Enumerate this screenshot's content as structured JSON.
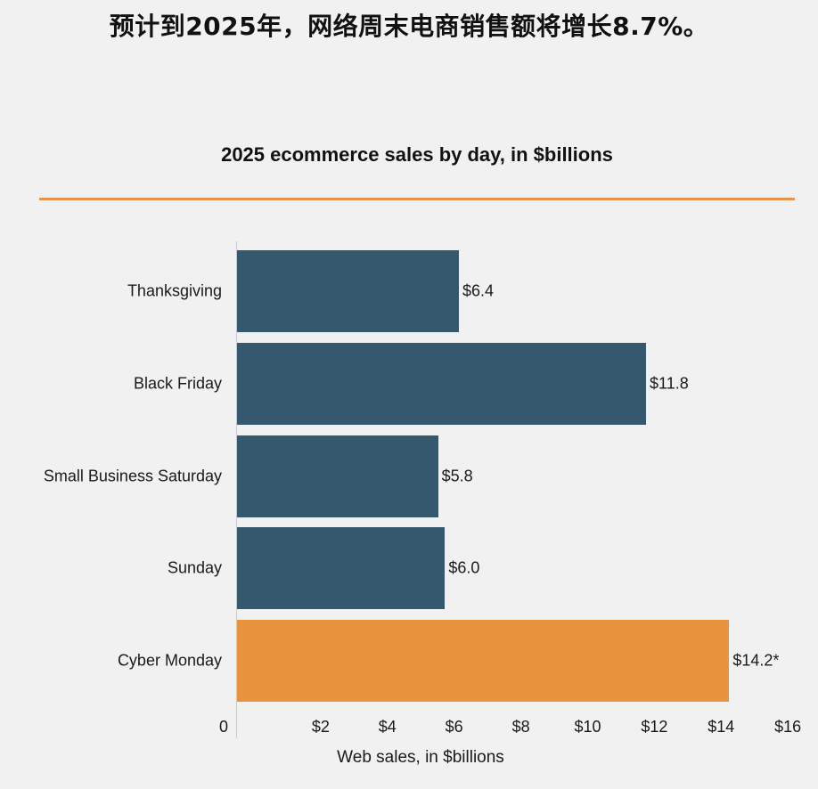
{
  "headline": "预计到2025年，网络周末电商销售额将增长8.7%。",
  "colors": {
    "background": "#f1f1f1",
    "bar_default": "#35586f",
    "bar_highlight": "#e8943f",
    "accent_rule": "#e8934a",
    "axis_line": "#c9c9c9"
  },
  "chart_data": {
    "type": "bar",
    "orientation": "horizontal",
    "title": "2025 ecommerce sales by day, in $billions",
    "xlabel": "Web sales, in $billions",
    "ylabel": "",
    "categories": [
      "Thanksgiving",
      "Black Friday",
      "Small Business Saturday",
      "Sunday",
      "Cyber Monday"
    ],
    "values": [
      6.4,
      11.8,
      5.8,
      6.0,
      14.2
    ],
    "value_labels": [
      "$6.4",
      "$11.8",
      "$5.8",
      "$6.0",
      "$14.2*"
    ],
    "highlighted_category": "Cyber Monday",
    "xlim": [
      0,
      16
    ],
    "x_ticks": [
      0,
      2,
      4,
      6,
      8,
      10,
      12,
      14,
      16
    ],
    "x_tick_labels": [
      "0",
      "$2",
      "$4",
      "$6",
      "$8",
      "$10",
      "$12",
      "$14",
      "$16"
    ],
    "grid": false,
    "legend": null
  }
}
